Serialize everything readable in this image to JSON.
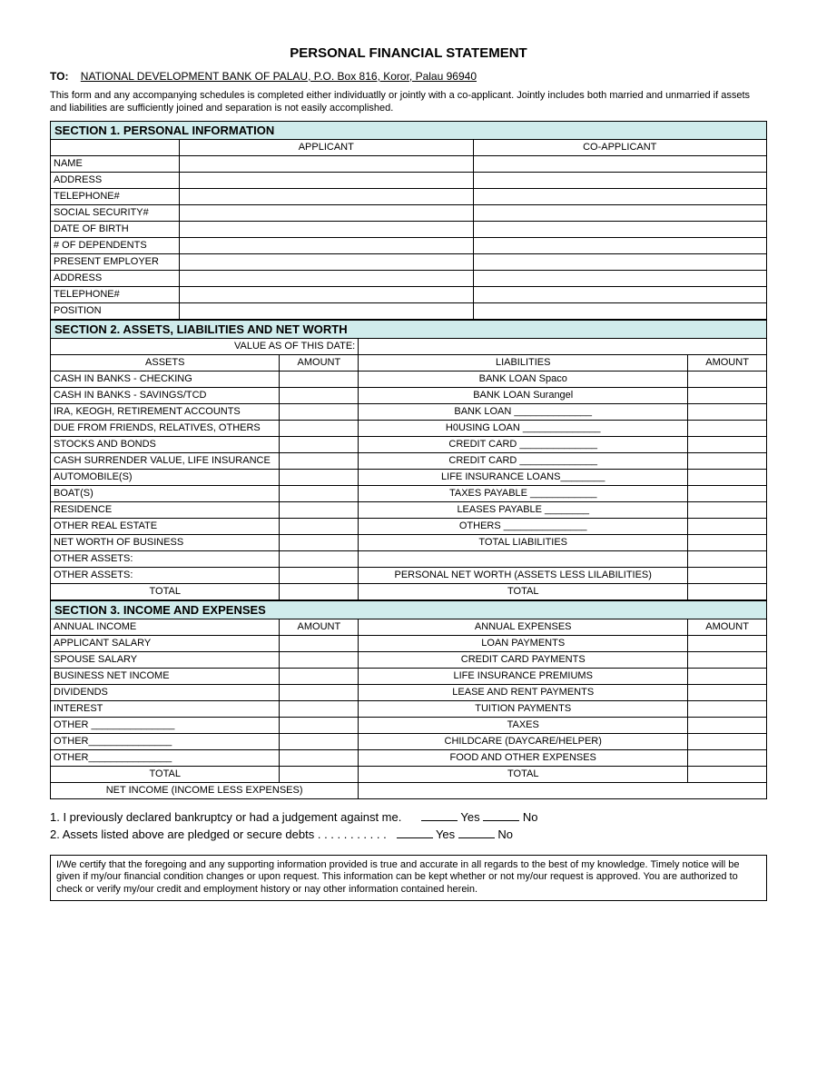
{
  "title": "PERSONAL FINANCIAL STATEMENT",
  "to_label": "TO:",
  "to_text": "NATIONAL DEVELOPMENT BANK OF PALAU, P.O. Box 816, Koror, Palau 96940",
  "intro": "This form and any accompanying schedules is completed either individuatlly or jointly with a co-applicant.  Jointly includes both married and unmarried if assets and liabilities are sufficiently joined and separation is not easily accomplished.",
  "section1": {
    "heading": "SECTION 1.  PERSONAL INFORMATION",
    "col_applicant": "APPLICANT",
    "col_coapplicant": "CO-APPLICANT",
    "rows": [
      "NAME",
      "ADDRESS",
      "TELEPHONE#",
      "SOCIAL SECURITY#",
      "DATE OF BIRTH",
      "# OF DEPENDENTS",
      "PRESENT EMPLOYER",
      "ADDRESS",
      "TELEPHONE#",
      "POSITION"
    ]
  },
  "section2": {
    "heading": "SECTION 2.  ASSETS, LIABILITIES AND NET WORTH",
    "date_label": "VALUE AS OF THIS DATE:",
    "col_assets": "ASSETS",
    "col_amount": "AMOUNT",
    "col_liab": "LIABILITIES",
    "rows": [
      {
        "a": "CASH IN BANKS - CHECKING",
        "l": "BANK LOAN  Spaco"
      },
      {
        "a": "CASH IN BANKS - SAVINGS/TCD",
        "l": "BANK LOAN  Surangel"
      },
      {
        "a": "IRA, KEOGH, RETIREMENT ACCOUNTS",
        "l": "BANK LOAN ______________"
      },
      {
        "a": "DUE FROM FRIENDS, RELATIVES, OTHERS",
        "l": "H0USING LOAN ______________"
      },
      {
        "a": "STOCKS AND BONDS",
        "l": "CREDIT CARD ______________"
      },
      {
        "a": "CASH SURRENDER VALUE, LIFE INSURANCE",
        "l": "CREDIT CARD ______________"
      },
      {
        "a": "AUTOMOBILE(S)",
        "l": "LIFE INSURANCE LOANS________"
      },
      {
        "a": "BOAT(S)",
        "l": "TAXES PAYABLE ____________"
      },
      {
        "a": "RESIDENCE",
        "l": "LEASES PAYABLE ________"
      },
      {
        "a": "OTHER REAL ESTATE",
        "l": "OTHERS _______________"
      },
      {
        "a": "NET WORTH OF BUSINESS",
        "l": "TOTAL LIABILITIES"
      },
      {
        "a": "OTHER ASSETS:",
        "l": ""
      },
      {
        "a": "OTHER ASSETS:",
        "l": "PERSONAL NET WORTH (ASSETS LESS LILABILITIES)"
      }
    ],
    "total_left": "TOTAL",
    "total_right": "TOTAL"
  },
  "section3": {
    "heading": "SECTION 3.  INCOME AND EXPENSES",
    "col_income": "ANNUAL INCOME",
    "col_amount": "AMOUNT",
    "col_expense": "ANNUAL EXPENSES",
    "rows": [
      {
        "i": "APPLICANT SALARY",
        "e": "LOAN PAYMENTS"
      },
      {
        "i": "SPOUSE SALARY",
        "e": "CREDIT CARD PAYMENTS"
      },
      {
        "i": "BUSINESS NET INCOME",
        "e": "LIFE INSURANCE PREMIUMS"
      },
      {
        "i": "DIVIDENDS",
        "e": "LEASE AND RENT PAYMENTS"
      },
      {
        "i": "INTEREST",
        "e": "TUITION PAYMENTS"
      },
      {
        "i": "OTHER _______________",
        "e": "TAXES"
      },
      {
        "i": "OTHER_______________",
        "e": "CHILDCARE (DAYCARE/HELPER)"
      },
      {
        "i": "OTHER_______________",
        "e": "FOOD AND OTHER EXPENSES"
      }
    ],
    "total_left": "TOTAL",
    "total_right": "TOTAL",
    "net_income": "NET INCOME (INCOME LESS EXPENSES)"
  },
  "q1": "1.  I previously declared bankruptcy or had a judgement against me.",
  "q2": "2.  Assets listed above are pledged or secure debts . . . . . . . . . . .",
  "yes": "Yes",
  "no": "No",
  "cert": "I/We certify that the foregoing and any supporting information provided is true and accurate in all regards to the best of my knowledge.  Timely notice will be given if my/our financial condition changes or upon request.  This information can be kept whether or not my/our request is approved.  You are authorized to check or verify my/our credit and employment history or nay other information contained herein."
}
